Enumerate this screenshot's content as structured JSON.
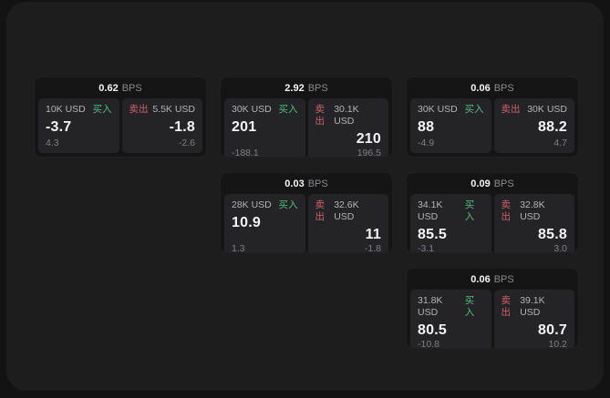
{
  "window": {
    "surface_color": "#1d1d1e",
    "outer_color": "#131314"
  },
  "labels": {
    "bps": "BPS",
    "buy": "买入",
    "sell": "卖出"
  },
  "colors": {
    "buy": "#4fbe80",
    "sell": "#d25f6e"
  },
  "cards": [
    {
      "col": 1,
      "row": 1,
      "bps": "0.62",
      "buy": {
        "size": "10K USD",
        "price": "-3.7",
        "delta": "4.3"
      },
      "sell": {
        "size": "5.5K USD",
        "price": "-1.8",
        "delta": "-2.6"
      }
    },
    {
      "col": 2,
      "row": 1,
      "bps": "2.92",
      "buy": {
        "size": "30K USD",
        "price": "201",
        "delta": "-188.1"
      },
      "sell": {
        "size": "30.1K USD",
        "price": "210",
        "delta": "196.5"
      }
    },
    {
      "col": 3,
      "row": 1,
      "bps": "0.06",
      "buy": {
        "size": "30K USD",
        "price": "88",
        "delta": "-4.9"
      },
      "sell": {
        "size": "30K USD",
        "price": "88.2",
        "delta": "4.7"
      }
    },
    {
      "col": 2,
      "row": 2,
      "bps": "0.03",
      "buy": {
        "size": "28K USD",
        "price": "10.9",
        "delta": "1.3"
      },
      "sell": {
        "size": "32.6K USD",
        "price": "11",
        "delta": "-1.8"
      }
    },
    {
      "col": 3,
      "row": 2,
      "bps": "0.09",
      "buy": {
        "size": "34.1K USD",
        "price": "85.5",
        "delta": "-3.1"
      },
      "sell": {
        "size": "32.8K USD",
        "price": "85.8",
        "delta": "3.0"
      }
    },
    {
      "col": 3,
      "row": 3,
      "bps": "0.06",
      "buy": {
        "size": "31.8K USD",
        "price": "80.5",
        "delta": "-10.8"
      },
      "sell": {
        "size": "39.1K USD",
        "price": "80.7",
        "delta": "10.2"
      }
    }
  ]
}
